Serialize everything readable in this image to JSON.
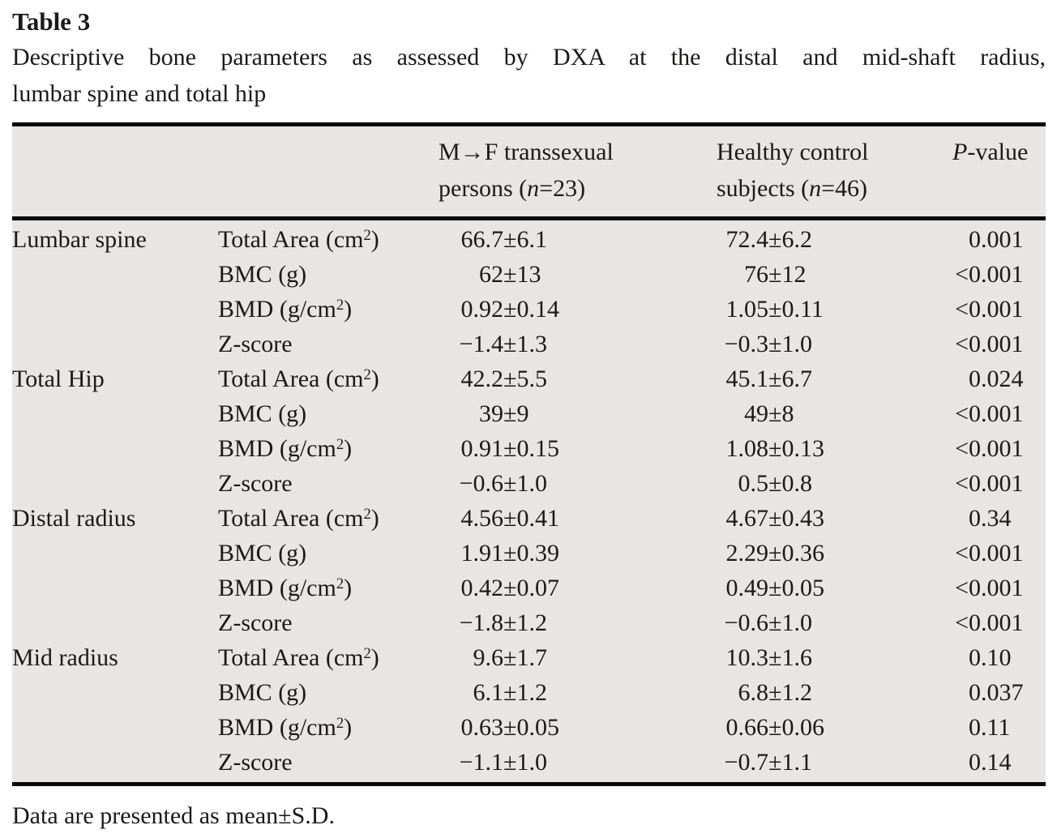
{
  "title": "Table 3",
  "caption": {
    "line1": "Descriptive bone parameters as assessed by DXA at the distal and mid-shaft radius,",
    "line2": "lumbar spine and total hip"
  },
  "symbols": {
    "pm": "±"
  },
  "header": {
    "col_tx": {
      "line1": "M→F transsexual",
      "line2_pre": "persons (",
      "n": "n",
      "line2_post": "=23)"
    },
    "col_hc": {
      "line1": "Healthy control",
      "line2_pre": "subjects (",
      "n": "n",
      "line2_post": "=46)"
    },
    "col_p": {
      "italic": "P",
      "rest": "-value"
    }
  },
  "rows": [
    {
      "region": "Lumbar spine",
      "param": {
        "pre": "Total Area (cm",
        "sup": "2",
        "post": ")"
      },
      "tx": {
        "m": "66.7",
        "s": "6.1"
      },
      "hc": {
        "m": "72.4",
        "s": "6.2"
      },
      "p": {
        "pfx": "",
        "num": "0.001"
      }
    },
    {
      "region": "",
      "param": {
        "pre": "BMC (g)",
        "sup": "",
        "post": ""
      },
      "tx": {
        "m": "62",
        "s": "13"
      },
      "hc": {
        "m": "76",
        "s": "12"
      },
      "p": {
        "pfx": "<",
        "num": "0.001"
      }
    },
    {
      "region": "",
      "param": {
        "pre": "BMD (g/cm",
        "sup": "2",
        "post": ")"
      },
      "tx": {
        "m": "0.92",
        "s": "0.14"
      },
      "hc": {
        "m": "1.05",
        "s": "0.11"
      },
      "p": {
        "pfx": "<",
        "num": "0.001"
      }
    },
    {
      "region": "",
      "param": {
        "pre": "Z-score",
        "sup": "",
        "post": ""
      },
      "tx": {
        "m": "−1.4",
        "s": "1.3"
      },
      "hc": {
        "m": "−0.3",
        "s": "1.0"
      },
      "p": {
        "pfx": "<",
        "num": "0.001"
      }
    },
    {
      "region": "Total Hip",
      "param": {
        "pre": "Total Area (cm",
        "sup": "2",
        "post": ")"
      },
      "tx": {
        "m": "42.2",
        "s": "5.5"
      },
      "hc": {
        "m": "45.1",
        "s": "6.7"
      },
      "p": {
        "pfx": "",
        "num": "0.024"
      }
    },
    {
      "region": "",
      "param": {
        "pre": "BMC (g)",
        "sup": "",
        "post": ""
      },
      "tx": {
        "m": "39",
        "s": "9"
      },
      "hc": {
        "m": "49",
        "s": "8"
      },
      "p": {
        "pfx": "<",
        "num": "0.001"
      }
    },
    {
      "region": "",
      "param": {
        "pre": "BMD (g/cm",
        "sup": "2",
        "post": ")"
      },
      "tx": {
        "m": "0.91",
        "s": "0.15"
      },
      "hc": {
        "m": "1.08",
        "s": "0.13"
      },
      "p": {
        "pfx": "<",
        "num": "0.001"
      }
    },
    {
      "region": "",
      "param": {
        "pre": "Z-score",
        "sup": "",
        "post": ""
      },
      "tx": {
        "m": "−0.6",
        "s": "1.0"
      },
      "hc": {
        "m": "0.5",
        "s": "0.8"
      },
      "p": {
        "pfx": "<",
        "num": "0.001"
      }
    },
    {
      "region": "Distal radius",
      "param": {
        "pre": "Total Area (cm",
        "sup": "2",
        "post": ")"
      },
      "tx": {
        "m": "4.56",
        "s": "0.41"
      },
      "hc": {
        "m": "4.67",
        "s": "0.43"
      },
      "p": {
        "pfx": "",
        "num": "0.34"
      }
    },
    {
      "region": "",
      "param": {
        "pre": "BMC (g)",
        "sup": "",
        "post": ""
      },
      "tx": {
        "m": "1.91",
        "s": "0.39"
      },
      "hc": {
        "m": "2.29",
        "s": "0.36"
      },
      "p": {
        "pfx": "<",
        "num": "0.001"
      }
    },
    {
      "region": "",
      "param": {
        "pre": "BMD (g/cm",
        "sup": "2",
        "post": ")"
      },
      "tx": {
        "m": "0.42",
        "s": "0.07"
      },
      "hc": {
        "m": "0.49",
        "s": "0.05"
      },
      "p": {
        "pfx": "<",
        "num": "0.001"
      }
    },
    {
      "region": "",
      "param": {
        "pre": "Z-score",
        "sup": "",
        "post": ""
      },
      "tx": {
        "m": "−1.8",
        "s": "1.2"
      },
      "hc": {
        "m": "−0.6",
        "s": "1.0"
      },
      "p": {
        "pfx": "<",
        "num": "0.001"
      }
    },
    {
      "region": "Mid radius",
      "param": {
        "pre": "Total Area (cm",
        "sup": "2",
        "post": ")"
      },
      "tx": {
        "m": "9.6",
        "s": "1.7"
      },
      "hc": {
        "m": "10.3",
        "s": "1.6"
      },
      "p": {
        "pfx": "",
        "num": "0.10"
      }
    },
    {
      "region": "",
      "param": {
        "pre": "BMC (g)",
        "sup": "",
        "post": ""
      },
      "tx": {
        "m": "6.1",
        "s": "1.2"
      },
      "hc": {
        "m": "6.8",
        "s": "1.2"
      },
      "p": {
        "pfx": "",
        "num": "0.037"
      }
    },
    {
      "region": "",
      "param": {
        "pre": "BMD (g/cm",
        "sup": "2",
        "post": ")"
      },
      "tx": {
        "m": "0.63",
        "s": "0.05"
      },
      "hc": {
        "m": "0.66",
        "s": "0.06"
      },
      "p": {
        "pfx": "",
        "num": "0.11"
      }
    },
    {
      "region": "",
      "param": {
        "pre": "Z-score",
        "sup": "",
        "post": ""
      },
      "tx": {
        "m": "−1.1",
        "s": "1.0"
      },
      "hc": {
        "m": "−0.7",
        "s": "1.1"
      },
      "p": {
        "pfx": "",
        "num": "0.14"
      }
    }
  ],
  "footnote": "Data are presented as mean±S.D."
}
